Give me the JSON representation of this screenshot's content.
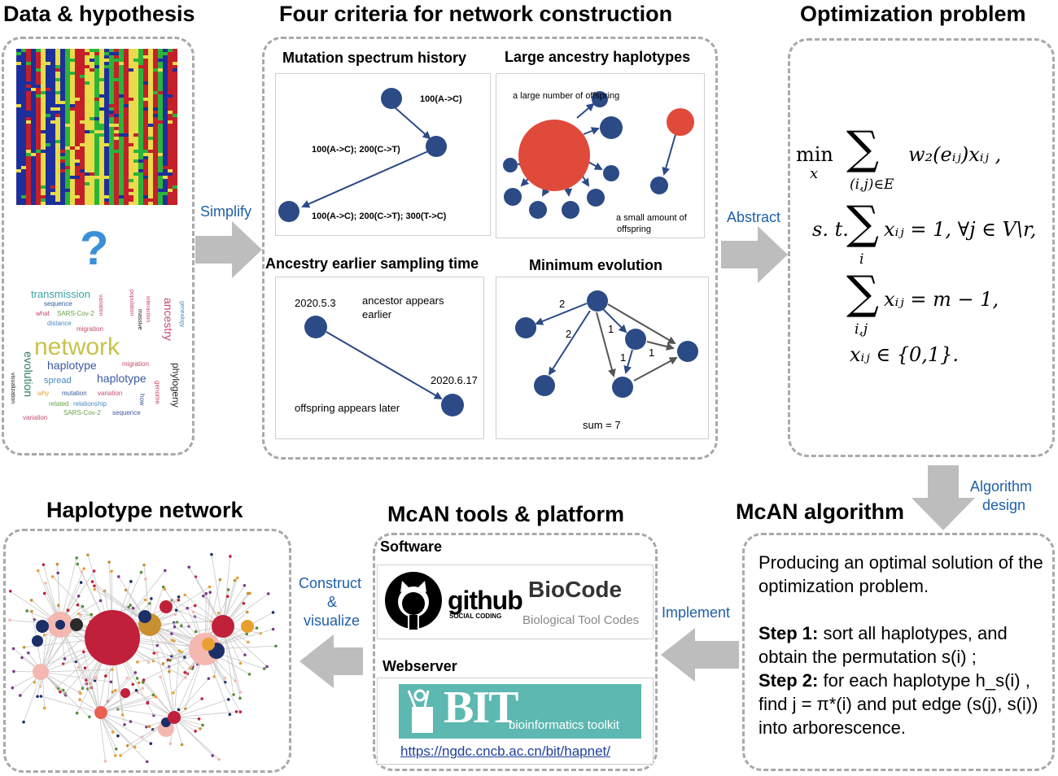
{
  "sections": {
    "data_hypothesis": "Data & hypothesis",
    "four_criteria": "Four criteria for network construction",
    "optimization": "Optimization problem",
    "haplotype_network": "Haplotype network",
    "mcan_tools": "McAN tools & platform",
    "mcan_algorithm": "McAN algorithm"
  },
  "arrows": {
    "simplify": "Simplify",
    "abstract": "Abstract",
    "algorithm_design_1": "Algorithm",
    "algorithm_design_2": "design",
    "implement": "Implement",
    "construct_1": "Construct",
    "construct_2": "&",
    "construct_3": "visualize"
  },
  "data": {
    "question_mark": "?",
    "word_cloud": [
      "transmission",
      "sequence",
      "evolution",
      "what",
      "SARS-Cov-2",
      "distance",
      "migration",
      "network",
      "haplotype",
      "spread",
      "haplotype",
      "evolution",
      "why",
      "mutation",
      "variation",
      "related",
      "relationship",
      "SARS-Cov-2",
      "variation",
      "sequence",
      "ancestry",
      "phylogeny",
      "genome",
      "migration",
      "population",
      "interaction",
      "massive",
      "variation",
      "genealogy",
      "visualization",
      "how"
    ],
    "colors": {
      "green": "#2bb43a",
      "blue": "#1d2f9a",
      "red": "#c51f2a",
      "yellow": "#e8dc4a"
    }
  },
  "criteria": {
    "mutation_spectrum": {
      "title": "Mutation spectrum history",
      "labels": [
        "100(A->C)",
        "100(A->C); 200(C->T)",
        "100(A->C); 200(C->T); 300(T->C)"
      ]
    },
    "large_ancestry": {
      "title": "Large ancestry haplotypes",
      "labels": [
        "a large number of offspring",
        "a small amount of",
        "offspring"
      ]
    },
    "earlier_sampling": {
      "title": "Ancestry earlier sampling time",
      "labels": [
        "2020.5.3",
        "ancestor appears",
        "earlier",
        "2020.6.17",
        "offspring appears later"
      ]
    },
    "minimum_evolution": {
      "title": "Minimum evolution",
      "edge_weights": [
        "2",
        "2",
        "1",
        "1",
        "1"
      ],
      "sum": "sum = 7"
    },
    "node_color": "#2b4a86",
    "highlight_color": "#e04a3a"
  },
  "optimization": {
    "line1_min": "min",
    "line1_sub": "x",
    "line1_sum_under": "(i,j)∈E",
    "line1_expr": "w₂(eᵢⱼ)xᵢⱼ ,",
    "line2_st": "s. t.",
    "line2_under": "i",
    "line2_expr": "xᵢⱼ = 1, ∀j ∈ V\\r,",
    "line3_under": "i,j",
    "line3_expr": "xᵢⱼ = m − 1,",
    "line4_expr": "xᵢⱼ ∈ {0,1}."
  },
  "algorithm": {
    "intro": "Producing an optimal solution of the optimization problem.",
    "step1_label": "Step 1:",
    "step1_text": " sort all haplotypes, and obtain the permutation s(i) ;",
    "step2_label": "Step 2:",
    "step2_text": " for each haplotype h_s(i) , find  j = π*(i) and put edge (s(j), s(i))  into arborescence."
  },
  "tools": {
    "software_label": "Software",
    "github_text": "github",
    "github_sub": "SOCIAL CODING",
    "biocode_title": "BioCode",
    "biocode_sub": "Biological Tool Codes",
    "webserver_label": "Webserver",
    "bit_logo": "BIT",
    "bit_sub": "bioinformatics toolkit",
    "url": "https://ngdc.cncb.ac.cn/bit/hapnet/"
  }
}
